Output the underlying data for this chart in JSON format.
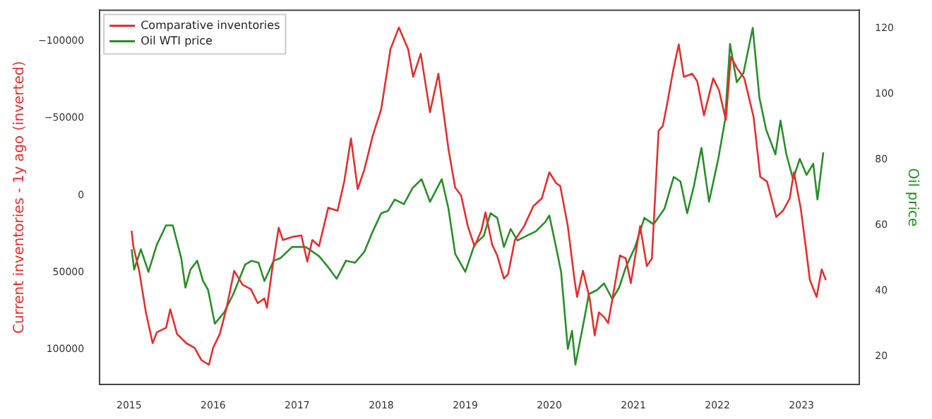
{
  "chart_data": {
    "type": "line",
    "ylabel": "Current inventories - 1y ago (inverted)",
    "y2label": "Oil price",
    "legend": "top left",
    "grid": false,
    "marker": "none",
    "line_style": "solid",
    "xlim": [
      2014.65,
      2023.69
    ],
    "xticks": [
      2015,
      2016,
      2017,
      2018,
      2019,
      2020,
      2021,
      2022,
      2023
    ],
    "ylim": [
      122900,
      -120300
    ],
    "yticks": [
      {
        "value": -100000,
        "label": "−100000"
      },
      {
        "value": -50000,
        "label": "−50000"
      },
      0,
      50000,
      100000
    ],
    "y2lim": [
      11.4,
      125.7
    ],
    "y2ticks": [
      20,
      40,
      60,
      80,
      100,
      120
    ],
    "series": [
      {
        "name": "Comparative inventories",
        "color": "#e03030",
        "x": [
          2015.03,
          2015.05,
          2015.12,
          2015.2,
          2015.28,
          2015.33,
          2015.44,
          2015.49,
          2015.57,
          2015.68,
          2015.78,
          2015.86,
          2015.95,
          2016.0,
          2016.08,
          2016.16,
          2016.25,
          2016.35,
          2016.45,
          2016.53,
          2016.61,
          2016.64,
          2016.7,
          2016.78,
          2016.83,
          2016.94,
          2017.05,
          2017.12,
          2017.18,
          2017.26,
          2017.37,
          2017.48,
          2017.56,
          2017.64,
          2017.72,
          2017.8,
          2017.9,
          2018.0,
          2018.11,
          2018.21,
          2018.32,
          2018.38,
          2018.47,
          2018.58,
          2018.68,
          2018.8,
          2018.88,
          2018.95,
          2019.03,
          2019.11,
          2019.19,
          2019.24,
          2019.32,
          2019.38,
          2019.46,
          2019.51,
          2019.59,
          2019.7,
          2019.81,
          2019.91,
          2020.0,
          2020.08,
          2020.13,
          2020.22,
          2020.3,
          2020.33,
          2020.4,
          2020.48,
          2020.54,
          2020.59,
          2020.65,
          2020.7,
          2020.78,
          2020.84,
          2020.91,
          2020.97,
          2021.08,
          2021.16,
          2021.22,
          2021.3,
          2021.35,
          2021.4,
          2021.48,
          2021.54,
          2021.6,
          2021.7,
          2021.76,
          2021.84,
          2021.95,
          2022.02,
          2022.1,
          2022.16,
          2022.24,
          2022.32,
          2022.43,
          2022.51,
          2022.59,
          2022.7,
          2022.78,
          2022.86,
          2022.91,
          2022.99,
          2023.05,
          2023.1,
          2023.18,
          2023.24,
          2023.29
        ],
        "values": [
          23000,
          33000,
          49000,
          76000,
          96000,
          89000,
          86000,
          74000,
          90000,
          96000,
          99000,
          107000,
          110000,
          99000,
          90000,
          73000,
          49000,
          58000,
          61000,
          70000,
          67000,
          73000,
          49000,
          21000,
          29000,
          27000,
          26000,
          43000,
          29000,
          33000,
          8000,
          10000,
          -9000,
          -37000,
          -4000,
          -17000,
          -39000,
          -56000,
          -95000,
          -109000,
          -95000,
          -77000,
          -92000,
          -54000,
          -79000,
          -30000,
          -5000,
          0,
          20000,
          33000,
          23000,
          11000,
          32000,
          39000,
          54000,
          51000,
          29000,
          20000,
          7000,
          2000,
          -15000,
          -8000,
          -6000,
          20000,
          55000,
          66000,
          49000,
          67000,
          91000,
          76000,
          79000,
          83000,
          58000,
          39000,
          41000,
          57000,
          20000,
          46000,
          41000,
          -42000,
          -45000,
          -59000,
          -83000,
          -98000,
          -77000,
          -79000,
          -74000,
          -52000,
          -76000,
          -68000,
          -49000,
          -90000,
          -82000,
          -76000,
          -51000,
          -12000,
          -9000,
          14000,
          10000,
          2000,
          -15000,
          8000,
          33000,
          55000,
          66000,
          48000,
          55000
        ]
      },
      {
        "name": "Oil WTI price",
        "color": "#2a8c2a",
        "axis": "y2",
        "x": [
          2015.03,
          2015.06,
          2015.14,
          2015.23,
          2015.33,
          2015.44,
          2015.52,
          2015.62,
          2015.67,
          2015.73,
          2015.81,
          2015.88,
          2015.94,
          2016.02,
          2016.13,
          2016.24,
          2016.38,
          2016.46,
          2016.54,
          2016.61,
          2016.72,
          2016.8,
          2016.94,
          2017.1,
          2017.26,
          2017.37,
          2017.47,
          2017.58,
          2017.69,
          2017.8,
          2017.9,
          2018.0,
          2018.08,
          2018.16,
          2018.27,
          2018.37,
          2018.48,
          2018.58,
          2018.72,
          2018.8,
          2018.88,
          2019.0,
          2019.11,
          2019.22,
          2019.3,
          2019.38,
          2019.46,
          2019.54,
          2019.62,
          2019.73,
          2019.84,
          2019.95,
          2020.0,
          2020.08,
          2020.14,
          2020.22,
          2020.27,
          2020.31,
          2020.41,
          2020.47,
          2020.57,
          2020.65,
          2020.75,
          2020.83,
          2020.91,
          2021.02,
          2021.13,
          2021.24,
          2021.37,
          2021.48,
          2021.56,
          2021.64,
          2021.72,
          2021.81,
          2021.9,
          2022.01,
          2022.09,
          2022.15,
          2022.23,
          2022.31,
          2022.42,
          2022.5,
          2022.58,
          2022.69,
          2022.75,
          2022.82,
          2022.9,
          2022.98,
          2023.06,
          2023.14,
          2023.19,
          2023.26
        ],
        "values": [
          52.7,
          46.5,
          52.7,
          45.8,
          54.1,
          60,
          60,
          50,
          41,
          46.5,
          49.2,
          43,
          40.3,
          30,
          33.4,
          39,
          48,
          49.2,
          48.6,
          43,
          49.2,
          50,
          53.4,
          53.4,
          50.6,
          47.2,
          43.7,
          49.2,
          48.6,
          52,
          58.2,
          63.7,
          64.4,
          67.9,
          66.5,
          71.3,
          74.1,
          67.2,
          74.1,
          65.1,
          51.3,
          45.8,
          54.1,
          56.8,
          63.7,
          62.3,
          53.4,
          58.9,
          55.4,
          56.8,
          58.2,
          61,
          63,
          53.4,
          45.8,
          22.3,
          27.8,
          17.5,
          30.6,
          39,
          40.3,
          42.3,
          37.5,
          41,
          47.2,
          53.4,
          62.3,
          60.3,
          65.1,
          74.8,
          73.4,
          63.7,
          72,
          83.7,
          67.2,
          80.3,
          92,
          115.4,
          103.7,
          106.5,
          120.3,
          98.9,
          89.2,
          81.7,
          92,
          81.7,
          74.1,
          80.3,
          75.4,
          78.8,
          67.9,
          82.3
        ]
      }
    ]
  }
}
